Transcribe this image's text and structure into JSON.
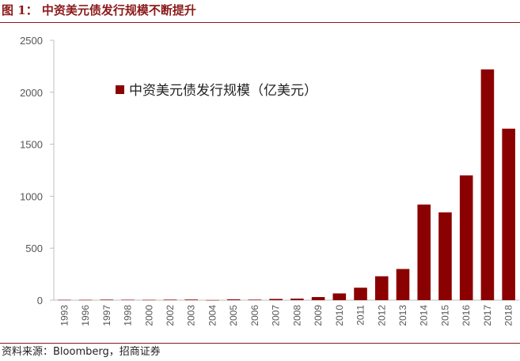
{
  "figure": {
    "title": "图 1：  中资美元债发行规模不断提升",
    "source": "资料来源：Bloomberg，招商证券"
  },
  "colors": {
    "bar": "#8b0000",
    "accent": "#8b1a1a"
  },
  "chart_data": {
    "type": "bar",
    "categories": [
      "1993",
      "1996",
      "1997",
      "1998",
      "2000",
      "2002",
      "2003",
      "2004",
      "2005",
      "2006",
      "2007",
      "2008",
      "2009",
      "2010",
      "2011",
      "2012",
      "2013",
      "2014",
      "2015",
      "2016",
      "2017",
      "2018"
    ],
    "series": [
      {
        "name": "中资美元债发行规模（亿美元）",
        "values": [
          3,
          3,
          5,
          4,
          3,
          5,
          6,
          1,
          8,
          5,
          12,
          15,
          30,
          65,
          120,
          230,
          300,
          920,
          845,
          1200,
          2220,
          1650
        ]
      }
    ],
    "ylim": [
      0,
      2500
    ],
    "yticks": [
      0,
      500,
      1000,
      1500,
      2000,
      2500
    ],
    "grid": false,
    "legend": "top-left"
  }
}
